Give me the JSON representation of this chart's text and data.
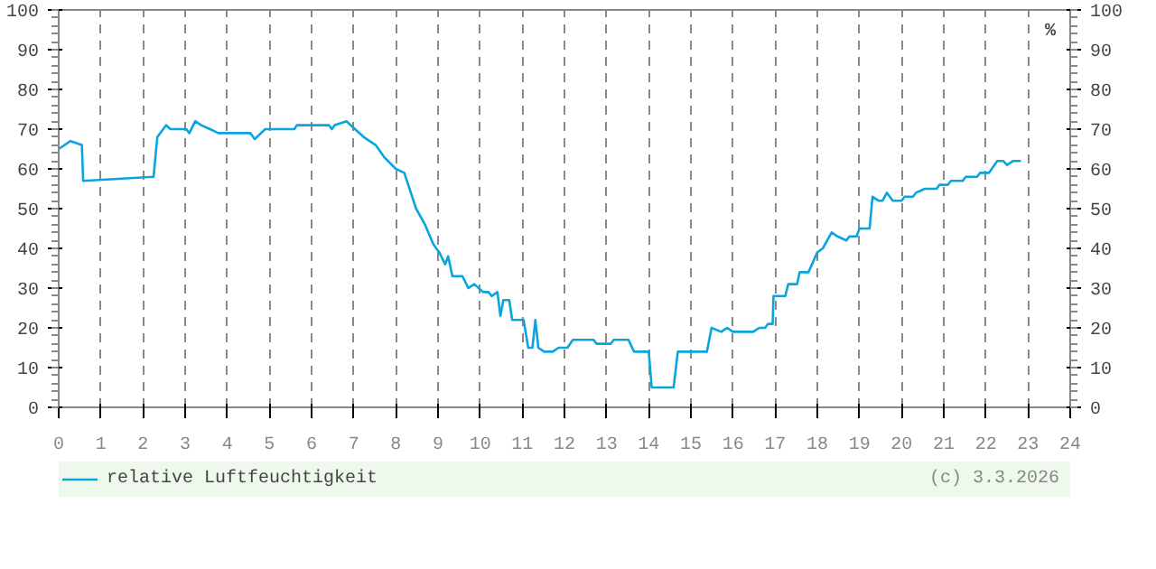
{
  "chart_data": {
    "type": "line",
    "y2label": "%",
    "x": [
      0,
      0.28,
      0.55,
      0.58,
      2.25,
      2.34,
      2.55,
      2.65,
      3.03,
      3.1,
      3.24,
      3.38,
      3.59,
      3.79,
      4.55,
      4.65,
      4.9,
      5.59,
      5.65,
      6.41,
      6.48,
      6.55,
      6.83,
      7.03,
      7.24,
      7.52,
      7.72,
      8.0,
      8.2,
      8.48,
      8.69,
      8.89,
      9.03,
      9.17,
      9.24,
      9.34,
      9.58,
      9.72,
      9.86,
      10.07,
      10.2,
      10.27,
      10.41,
      10.48,
      10.55,
      10.69,
      10.76,
      11.03,
      11.14,
      11.24,
      11.31,
      11.38,
      11.52,
      11.72,
      11.86,
      12.07,
      12.2,
      12.69,
      12.76,
      13.1,
      13.17,
      13.52,
      13.65,
      14.0,
      14.07,
      14.59,
      14.69,
      15.38,
      15.49,
      15.72,
      15.86,
      16.0,
      16.48,
      16.62,
      16.76,
      16.83,
      16.94,
      16.96,
      17.24,
      17.31,
      17.52,
      17.58,
      17.79,
      18.0,
      18.13,
      18.34,
      18.48,
      18.69,
      18.76,
      18.93,
      19.0,
      19.24,
      19.31,
      19.45,
      19.55,
      19.65,
      19.79,
      20.0,
      20.07,
      20.27,
      20.34,
      20.55,
      20.83,
      20.9,
      21.1,
      21.17,
      21.45,
      21.52,
      21.79,
      21.86,
      22.07,
      22.27,
      22.41,
      22.5,
      22.65,
      22.83
    ],
    "series": [
      {
        "name": "relative Luftfeuchtigkeit",
        "color": "#0aa5dc",
        "values": [
          65,
          67,
          66,
          57,
          58,
          68,
          71,
          70,
          70,
          69,
          72,
          71,
          70,
          69,
          69,
          67.5,
          70,
          70,
          71,
          71,
          70,
          71,
          72,
          70,
          68,
          66,
          63,
          60,
          59,
          50,
          46,
          41,
          39,
          36,
          38,
          33,
          33,
          30,
          31,
          29,
          29,
          28,
          29,
          23,
          27,
          27,
          22,
          22,
          15,
          15,
          22,
          15,
          14,
          14,
          15,
          15,
          17,
          17,
          16,
          16,
          17,
          17,
          14,
          14,
          5,
          5,
          14,
          14,
          20,
          19,
          20,
          19,
          19,
          20,
          20,
          21,
          21,
          28,
          28,
          31,
          31,
          34,
          34,
          39,
          40,
          44,
          43,
          42,
          43,
          43,
          45,
          45,
          53,
          52,
          52,
          54,
          52,
          52,
          53,
          53,
          54,
          55,
          55,
          56,
          56,
          57,
          57,
          58,
          58,
          59,
          59,
          62,
          62,
          61,
          62,
          62
        ]
      }
    ],
    "xlim": [
      0,
      24
    ],
    "xticks": [
      0,
      1,
      2,
      3,
      4,
      5,
      6,
      7,
      8,
      9,
      10,
      11,
      12,
      13,
      14,
      15,
      16,
      17,
      18,
      19,
      20,
      21,
      22,
      23,
      24
    ],
    "ylim": [
      0,
      100
    ],
    "yticks": [
      0,
      10,
      20,
      30,
      40,
      50,
      60,
      70,
      80,
      90,
      100
    ],
    "y2lim": [
      0,
      100
    ],
    "y2ticks": [
      0,
      10,
      20,
      30,
      40,
      50,
      60,
      70,
      80,
      90,
      100
    ],
    "grid": "x",
    "legend": "bottom left",
    "annotations": [
      "(c) 3.3.2026"
    ]
  }
}
